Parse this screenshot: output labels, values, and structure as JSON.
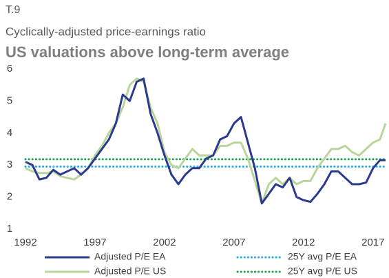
{
  "chart_data": {
    "type": "line",
    "label": "T.9",
    "subtitle": "Cyclically-adjusted price-earnings ratio",
    "title": "US valuations above long-term average",
    "x": [
      1992,
      1992.5,
      1993,
      1993.5,
      1994,
      1994.5,
      1995,
      1995.5,
      1996,
      1996.5,
      1997,
      1997.5,
      1998,
      1998.5,
      1999,
      1999.5,
      2000,
      2000.5,
      2001,
      2001.5,
      2002,
      2002.5,
      2003,
      2003.5,
      2004,
      2004.5,
      2005,
      2005.5,
      2006,
      2006.5,
      2007,
      2007.5,
      2008,
      2008.5,
      2009,
      2009.5,
      2010,
      2010.5,
      2011,
      2011.5,
      2012,
      2012.5,
      2013,
      2013.5,
      2014,
      2014.5,
      2015,
      2015.5,
      2016,
      2016.5,
      2017,
      2017.5,
      2017.9
    ],
    "series": [
      {
        "name": "Adjusted P/E EA",
        "color": "#2b3a8c",
        "values": [
          3.1,
          3.0,
          2.55,
          2.6,
          2.85,
          2.7,
          2.8,
          2.9,
          2.7,
          2.9,
          3.2,
          3.5,
          3.8,
          4.3,
          5.2,
          5.0,
          5.6,
          5.7,
          4.6,
          4.0,
          3.3,
          2.7,
          2.4,
          2.7,
          2.9,
          2.9,
          3.2,
          3.3,
          3.8,
          3.9,
          4.3,
          4.5,
          3.7,
          2.9,
          1.8,
          2.1,
          2.4,
          2.3,
          2.6,
          2.0,
          1.9,
          1.85,
          2.1,
          2.4,
          2.8,
          2.8,
          2.6,
          2.4,
          2.4,
          2.45,
          2.9,
          3.15,
          3.15
        ]
      },
      {
        "name": "Adjusted P/E US",
        "color": "#b8d59c",
        "values": [
          2.9,
          2.8,
          2.75,
          2.75,
          2.8,
          2.65,
          2.6,
          2.55,
          2.7,
          2.9,
          3.3,
          3.6,
          4.0,
          4.3,
          4.8,
          5.5,
          5.7,
          5.6,
          4.8,
          4.3,
          3.4,
          3.0,
          2.9,
          3.2,
          3.5,
          3.3,
          3.3,
          3.3,
          3.6,
          3.6,
          3.7,
          3.7,
          3.2,
          2.5,
          1.8,
          2.4,
          2.6,
          2.4,
          2.6,
          2.4,
          2.5,
          2.5,
          2.9,
          3.2,
          3.5,
          3.5,
          3.6,
          3.4,
          3.3,
          3.5,
          3.7,
          3.8,
          4.3
        ]
      }
    ],
    "reference_lines": [
      {
        "name": "25Y avg P/E EA",
        "color": "#2aa9e0",
        "value": 2.95,
        "style": "dotted"
      },
      {
        "name": "25Y avg P/E US",
        "color": "#1ba04b",
        "value": 3.18,
        "style": "dotted"
      }
    ],
    "xlim": [
      1992,
      2018
    ],
    "xticks": [
      1992,
      1997,
      2002,
      2007,
      2012,
      2017
    ],
    "ylim": [
      1,
      6
    ],
    "yticks": [
      1,
      2,
      3,
      4,
      5,
      6
    ]
  }
}
